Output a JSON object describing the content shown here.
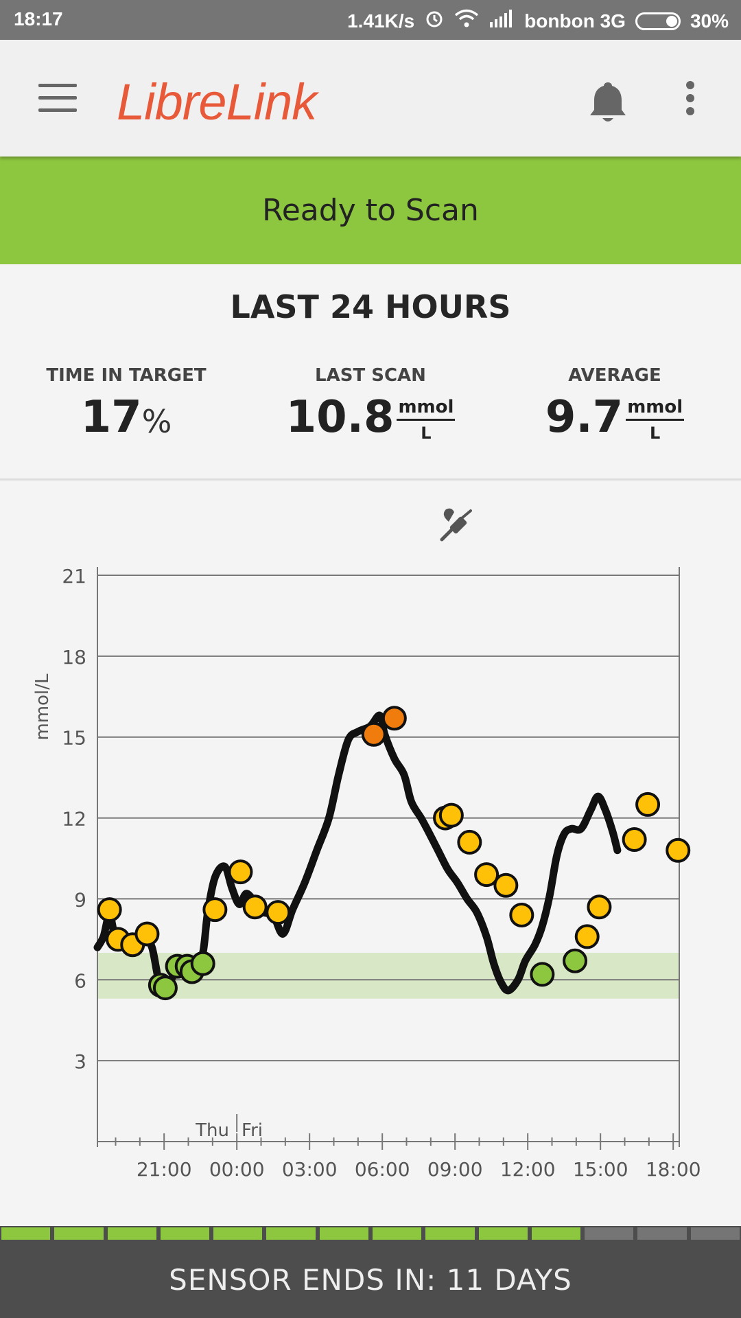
{
  "status_bar": {
    "time": "18:17",
    "speed": "1.41K/s",
    "carrier": "bonbon 3G",
    "battery": "30%"
  },
  "app_bar": {
    "title": "LibreLink",
    "icons": [
      "menu-icon",
      "bell-icon",
      "more-vert-icon"
    ]
  },
  "banner": {
    "text": "Ready to Scan",
    "color": "#8dc63f"
  },
  "summary": {
    "title": "LAST 24 HOURS",
    "time_in_target": {
      "label": "TIME IN TARGET",
      "value": "17",
      "unit": "%"
    },
    "last_scan": {
      "label": "LAST SCAN",
      "value": "10.8",
      "unit_num": "mmol",
      "unit_den": "L"
    },
    "average": {
      "label": "AVERAGE",
      "value": "9.7",
      "unit_num": "mmol",
      "unit_den": "L"
    }
  },
  "chart_data": {
    "type": "line",
    "ylabel": "mmol/L",
    "ylim": [
      0,
      21
    ],
    "yticks": [
      3,
      6,
      9,
      12,
      15,
      18,
      21
    ],
    "xlim": [
      18.25,
      42.25
    ],
    "xticks": [
      {
        "x": 21,
        "label": "21:00"
      },
      {
        "x": 24,
        "label": "00:00"
      },
      {
        "x": 27,
        "label": "03:00"
      },
      {
        "x": 30,
        "label": "06:00"
      },
      {
        "x": 33,
        "label": "09:00"
      },
      {
        "x": 36,
        "label": "12:00"
      },
      {
        "x": 39,
        "label": "15:00"
      },
      {
        "x": 42,
        "label": "18:00"
      }
    ],
    "day_labels": [
      "Thu",
      "Fri"
    ],
    "day_boundary_x": 24,
    "target_range": [
      5.3,
      7.0
    ],
    "target_color": "#d8e8c6",
    "event_marker": "insulin-icon",
    "event_x": 33.2,
    "line": [
      [
        18.25,
        7.2
      ],
      [
        18.5,
        7.6
      ],
      [
        18.75,
        8.4
      ],
      [
        19.0,
        7.5
      ],
      [
        19.3,
        7.3
      ],
      [
        19.6,
        7.2
      ],
      [
        19.9,
        7.4
      ],
      [
        20.2,
        7.5
      ],
      [
        20.5,
        7.2
      ],
      [
        20.8,
        5.9
      ],
      [
        21.1,
        5.6
      ],
      [
        21.4,
        6.2
      ],
      [
        21.7,
        6.4
      ],
      [
        22.0,
        6.4
      ],
      [
        22.3,
        6.5
      ],
      [
        22.6,
        7.0
      ],
      [
        22.8,
        8.5
      ],
      [
        23.1,
        9.8
      ],
      [
        23.5,
        10.2
      ],
      [
        23.8,
        9.4
      ],
      [
        24.1,
        8.8
      ],
      [
        24.4,
        9.2
      ],
      [
        24.8,
        8.8
      ],
      [
        25.1,
        8.5
      ],
      [
        25.5,
        8.4
      ],
      [
        25.9,
        7.7
      ],
      [
        26.3,
        8.6
      ],
      [
        26.8,
        9.6
      ],
      [
        27.3,
        10.8
      ],
      [
        27.8,
        12.0
      ],
      [
        28.2,
        13.6
      ],
      [
        28.6,
        14.9
      ],
      [
        29.0,
        15.2
      ],
      [
        29.5,
        15.4
      ],
      [
        29.9,
        15.8
      ],
      [
        30.1,
        15.1
      ],
      [
        30.5,
        14.2
      ],
      [
        30.9,
        13.6
      ],
      [
        31.2,
        12.6
      ],
      [
        31.6,
        12.0
      ],
      [
        31.9,
        11.5
      ],
      [
        32.3,
        10.8
      ],
      [
        32.7,
        10.1
      ],
      [
        33.1,
        9.6
      ],
      [
        33.5,
        9.0
      ],
      [
        33.9,
        8.5
      ],
      [
        34.3,
        7.6
      ],
      [
        34.6,
        6.6
      ],
      [
        34.9,
        5.9
      ],
      [
        35.2,
        5.6
      ],
      [
        35.6,
        6.0
      ],
      [
        35.9,
        6.7
      ],
      [
        36.3,
        7.3
      ],
      [
        36.6,
        8.0
      ],
      [
        36.9,
        9.1
      ],
      [
        37.2,
        10.6
      ],
      [
        37.5,
        11.4
      ],
      [
        37.8,
        11.6
      ],
      [
        38.2,
        11.6
      ],
      [
        38.6,
        12.3
      ],
      [
        38.9,
        12.8
      ],
      [
        39.2,
        12.3
      ],
      [
        39.5,
        11.5
      ],
      [
        39.7,
        10.8
      ]
    ],
    "points": [
      {
        "x": 18.75,
        "y": 8.6,
        "level": "high"
      },
      {
        "x": 19.1,
        "y": 7.5,
        "level": "high"
      },
      {
        "x": 19.7,
        "y": 7.3,
        "level": "high"
      },
      {
        "x": 20.3,
        "y": 7.7,
        "level": "high"
      },
      {
        "x": 20.85,
        "y": 5.8,
        "level": "target"
      },
      {
        "x": 21.05,
        "y": 5.7,
        "level": "target"
      },
      {
        "x": 21.55,
        "y": 6.5,
        "level": "target"
      },
      {
        "x": 21.95,
        "y": 6.5,
        "level": "target"
      },
      {
        "x": 22.15,
        "y": 6.3,
        "level": "target"
      },
      {
        "x": 22.6,
        "y": 6.6,
        "level": "target"
      },
      {
        "x": 23.1,
        "y": 8.6,
        "level": "high"
      },
      {
        "x": 24.15,
        "y": 10.0,
        "level": "high"
      },
      {
        "x": 24.75,
        "y": 8.7,
        "level": "high"
      },
      {
        "x": 25.7,
        "y": 8.5,
        "level": "high"
      },
      {
        "x": 29.65,
        "y": 15.1,
        "level": "very-high"
      },
      {
        "x": 30.5,
        "y": 15.7,
        "level": "very-high"
      },
      {
        "x": 32.6,
        "y": 12.0,
        "level": "high"
      },
      {
        "x": 32.85,
        "y": 12.1,
        "level": "high"
      },
      {
        "x": 33.6,
        "y": 11.1,
        "level": "high"
      },
      {
        "x": 34.3,
        "y": 9.9,
        "level": "high"
      },
      {
        "x": 35.1,
        "y": 9.5,
        "level": "high"
      },
      {
        "x": 35.75,
        "y": 8.4,
        "level": "high"
      },
      {
        "x": 36.6,
        "y": 6.2,
        "level": "target"
      },
      {
        "x": 37.95,
        "y": 6.7,
        "level": "target"
      },
      {
        "x": 38.45,
        "y": 7.6,
        "level": "high"
      },
      {
        "x": 38.95,
        "y": 8.7,
        "level": "high"
      },
      {
        "x": 40.4,
        "y": 11.2,
        "level": "high"
      },
      {
        "x": 40.95,
        "y": 12.5,
        "level": "high"
      },
      {
        "x": 42.2,
        "y": 10.8,
        "level": "high"
      }
    ],
    "colors": {
      "high": "#ffc107",
      "target": "#8dc63f",
      "very-high": "#f07c0d",
      "line": "#111111"
    }
  },
  "sensor": {
    "text": "SENSOR ENDS IN: 11 DAYS",
    "segments_total": 14,
    "segments_remaining": 11,
    "active_color": "#8dc63f",
    "inactive_color": "#757575"
  }
}
